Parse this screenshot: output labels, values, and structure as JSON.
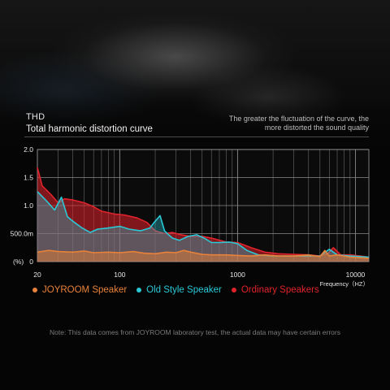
{
  "header": {
    "title_line1": "THD",
    "title_line2": "Total harmonic distortion curve",
    "note_line1": "The greater the fluctuation of the curve, the",
    "note_line2": "more distorted the sound quality"
  },
  "footnote": "Note: This data comes from JOYROOM laboratory test, the actual data may have certain errors",
  "chart_data": {
    "type": "line",
    "title": "Total harmonic distortion curve",
    "xlabel": "Frequency（HZ）",
    "ylabel": "(%)",
    "x_scale": "log",
    "xlim": [
      20,
      13000
    ],
    "ylim": [
      0,
      2.0
    ],
    "y_ticks": [
      {
        "value": 0,
        "label": "0"
      },
      {
        "value": 0.5,
        "label": "500.0m"
      },
      {
        "value": 1.0,
        "label": "1.0"
      },
      {
        "value": 1.5,
        "label": "1.5"
      },
      {
        "value": 2.0,
        "label": "2.0"
      }
    ],
    "x_ticks": [
      {
        "value": 20,
        "label": "20"
      },
      {
        "value": 100,
        "label": "100"
      },
      {
        "value": 1000,
        "label": "1000"
      },
      {
        "value": 10000,
        "label": "10000"
      }
    ],
    "grid": true,
    "legend_position": "bottom",
    "series": [
      {
        "name": "Ordinary Speakers",
        "color": "#e0232b",
        "x": [
          20,
          22,
          26,
          30,
          34,
          40,
          50,
          60,
          70,
          90,
          110,
          140,
          170,
          200,
          240,
          280,
          330,
          400,
          500,
          600,
          800,
          1000,
          1300,
          1700,
          2200,
          3000,
          4000,
          5000,
          5800,
          6500,
          7500,
          9000,
          11000,
          13000
        ],
        "y": [
          1.68,
          1.35,
          1.2,
          1.05,
          1.12,
          1.1,
          1.05,
          0.98,
          0.9,
          0.85,
          0.83,
          0.78,
          0.7,
          0.55,
          0.5,
          0.52,
          0.48,
          0.45,
          0.45,
          0.42,
          0.35,
          0.34,
          0.25,
          0.17,
          0.14,
          0.13,
          0.12,
          0.1,
          0.14,
          0.25,
          0.12,
          0.12,
          0.1,
          0.08
        ]
      },
      {
        "name": "Old Style Speaker",
        "color": "#29c9d6",
        "x": [
          20,
          24,
          28,
          32,
          36,
          40,
          48,
          56,
          65,
          80,
          100,
          120,
          150,
          180,
          200,
          220,
          240,
          260,
          280,
          320,
          380,
          450,
          520,
          600,
          700,
          850,
          1000,
          1200,
          1500,
          2000,
          3000,
          4000,
          5000,
          6000,
          7000,
          9000,
          11000,
          13000
        ],
        "y": [
          1.25,
          1.08,
          0.92,
          1.15,
          0.8,
          0.72,
          0.6,
          0.52,
          0.58,
          0.6,
          0.63,
          0.58,
          0.55,
          0.6,
          0.72,
          0.82,
          0.55,
          0.48,
          0.42,
          0.38,
          0.45,
          0.48,
          0.42,
          0.34,
          0.34,
          0.35,
          0.32,
          0.2,
          0.12,
          0.1,
          0.1,
          0.1,
          0.1,
          0.22,
          0.12,
          0.1,
          0.09,
          0.08
        ]
      },
      {
        "name": "JOYROOM Speaker",
        "color": "#e8823a",
        "x": [
          20,
          25,
          30,
          40,
          50,
          60,
          80,
          100,
          130,
          160,
          200,
          250,
          300,
          350,
          400,
          500,
          600,
          800,
          1000,
          1300,
          1700,
          2200,
          3000,
          4000,
          5000,
          5500,
          6000,
          7000,
          9000,
          11000,
          13000
        ],
        "y": [
          0.17,
          0.2,
          0.18,
          0.17,
          0.19,
          0.16,
          0.17,
          0.16,
          0.18,
          0.15,
          0.14,
          0.17,
          0.16,
          0.2,
          0.17,
          0.13,
          0.12,
          0.12,
          0.11,
          0.1,
          0.12,
          0.1,
          0.1,
          0.12,
          0.09,
          0.2,
          0.1,
          0.12,
          0.08,
          0.07,
          0.06
        ]
      }
    ]
  }
}
